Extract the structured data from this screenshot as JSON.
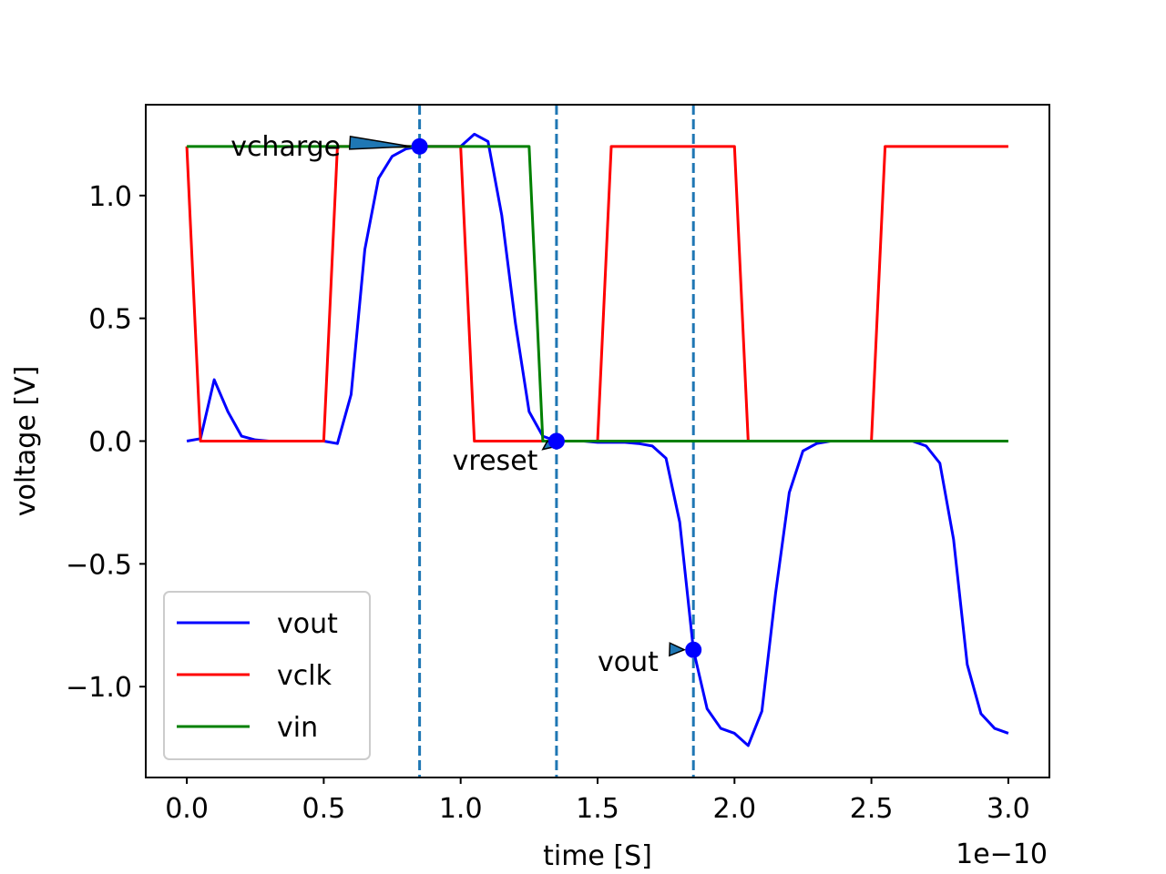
{
  "chart_data": {
    "type": "line",
    "xlabel": "time [S]",
    "ylabel": "voltage [V]",
    "x_offset_label": "1e−10",
    "xlim": [
      -0.15,
      3.15
    ],
    "ylim": [
      -1.37,
      1.37
    ],
    "x_ticks": [
      0.0,
      0.5,
      1.0,
      1.5,
      2.0,
      2.5,
      3.0
    ],
    "x_tick_labels": [
      "0.0",
      "0.5",
      "1.0",
      "1.5",
      "2.0",
      "2.5",
      "3.0"
    ],
    "y_ticks": [
      -1.0,
      -0.5,
      0.0,
      0.5,
      1.0
    ],
    "y_tick_labels": [
      "−1.0",
      "−0.5",
      "0.0",
      "0.5",
      "1.0"
    ],
    "grid": false,
    "legend_position": "lower-left",
    "series": [
      {
        "name": "vout",
        "color": "#0000ff",
        "x": [
          0.0,
          0.05,
          0.1,
          0.15,
          0.2,
          0.25,
          0.3,
          0.35,
          0.4,
          0.45,
          0.5,
          0.55,
          0.6,
          0.65,
          0.7,
          0.75,
          0.8,
          0.85,
          0.9,
          0.95,
          1.0,
          1.05,
          1.1,
          1.15,
          1.2,
          1.25,
          1.3,
          1.35,
          1.4,
          1.45,
          1.5,
          1.55,
          1.6,
          1.65,
          1.7,
          1.75,
          1.8,
          1.85,
          1.9,
          1.95,
          2.0,
          2.05,
          2.1,
          2.15,
          2.2,
          2.25,
          2.3,
          2.35,
          2.4,
          2.45,
          2.5,
          2.55,
          2.6,
          2.65,
          2.7,
          2.75,
          2.8,
          2.85,
          2.9,
          2.95,
          3.0
        ],
        "y": [
          0.0,
          0.01,
          0.25,
          0.12,
          0.02,
          0.005,
          0.0,
          0.0,
          0.0,
          0.0,
          0.0,
          -0.01,
          0.19,
          0.78,
          1.07,
          1.16,
          1.19,
          1.2,
          1.2,
          1.2,
          1.2,
          1.25,
          1.22,
          0.92,
          0.48,
          0.12,
          0.02,
          0.0,
          0.0,
          0.0,
          -0.005,
          -0.005,
          -0.005,
          -0.01,
          -0.02,
          -0.07,
          -0.33,
          -0.85,
          -1.09,
          -1.17,
          -1.19,
          -1.24,
          -1.1,
          -0.62,
          -0.21,
          -0.04,
          -0.01,
          0.0,
          0.0,
          0.0,
          0.0,
          0.0,
          0.0,
          0.0,
          -0.02,
          -0.09,
          -0.4,
          -0.91,
          -1.11,
          -1.17,
          -1.19
        ]
      },
      {
        "name": "vclk",
        "color": "#ff0000",
        "x": [
          0.0,
          0.05,
          0.5,
          0.55,
          1.0,
          1.05,
          1.5,
          1.55,
          2.0,
          2.05,
          2.5,
          2.55,
          3.0
        ],
        "y": [
          1.2,
          0.0,
          0.0,
          1.2,
          1.2,
          0.0,
          0.0,
          1.2,
          1.2,
          0.0,
          0.0,
          1.2,
          1.2
        ]
      },
      {
        "name": "vin",
        "color": "#008000",
        "x": [
          0.0,
          1.25,
          1.3,
          3.0
        ],
        "y": [
          1.2,
          1.2,
          0.0,
          0.0
        ]
      }
    ],
    "vlines": [
      0.85,
      1.35,
      1.85
    ],
    "vline_color": "#1f77b4",
    "markers": [
      {
        "x": 0.85,
        "y": 1.2
      },
      {
        "x": 1.35,
        "y": 0.0
      },
      {
        "x": 1.85,
        "y": -0.85
      }
    ],
    "marker_color": "#0000ff",
    "annotations": [
      {
        "text": "vcharge",
        "x": 0.85,
        "y": 1.2,
        "text_x": 0.16,
        "text_y": 1.2
      },
      {
        "text": "vreset",
        "x": 1.35,
        "y": 0.0,
        "text_x": 0.97,
        "text_y": -0.08
      },
      {
        "text": "vout",
        "x": 1.85,
        "y": -0.85,
        "text_x": 1.5,
        "text_y": -0.9
      }
    ],
    "arrow_color": "#1f77b4"
  }
}
